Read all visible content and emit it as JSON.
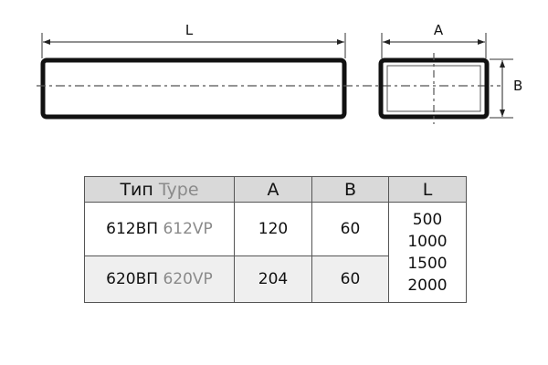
{
  "drawing": {
    "length_label": "L",
    "width_label": "A",
    "height_label": "B"
  },
  "table": {
    "headers": {
      "type_ru": "Тип",
      "type_en": "Type",
      "a": "A",
      "b": "B",
      "l": "L"
    },
    "rows": [
      {
        "type_ru": "612ВП",
        "type_en": "612VP",
        "a": "120",
        "b": "60"
      },
      {
        "type_ru": "620ВП",
        "type_en": "620VP",
        "a": "204",
        "b": "60"
      }
    ],
    "lengths": [
      "500",
      "1000",
      "1500",
      "2000"
    ]
  }
}
